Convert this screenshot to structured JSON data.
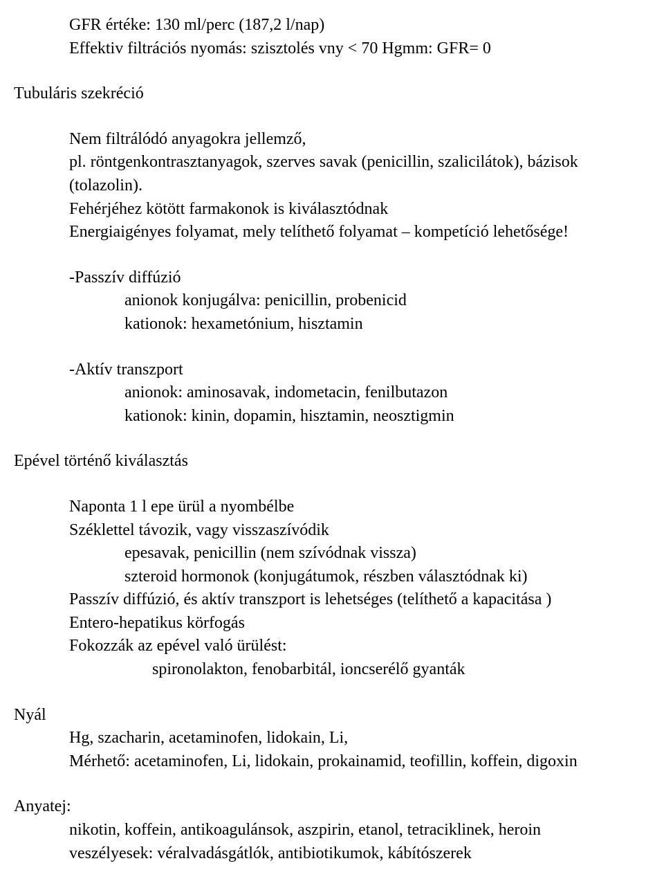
{
  "s1": {
    "l1": "GFR értéke: 130 ml/perc (187,2 l/nap)",
    "l2": "Effektiv filtrációs nyomás: szisztolés vny < 70 Hgmm: GFR= 0"
  },
  "s2": {
    "l1": "Tubuláris szekréció"
  },
  "s3": {
    "l1": "Nem filtrálódó anyagokra jellemző,",
    "l2": "pl. röntgenkontrasztanyagok, szerves savak (penicillin, szalicilátok), bázisok (tolazolin).",
    "l3": "Fehérjéhez kötött farmakonok is kiválasztódnak",
    "l4": "Energiaigényes folyamat, mely telíthető folyamat – kompetíció lehetősége!"
  },
  "s4": {
    "l1": "-Passzív diffúzió",
    "l2": "anionok konjugálva: penicillin, probenicid",
    "l3": "kationok: hexametónium, hisztamin"
  },
  "s5": {
    "l1": "-Aktív transzport",
    "l2": "anionok: aminosavak, indometacin, fenilbutazon",
    "l3": "kationok: kinin, dopamin, hisztamin, neosztigmin"
  },
  "s6": {
    "l1": "Epével történő kiválasztás"
  },
  "s7": {
    "l1": "Naponta 1 l epe ürül a nyombélbe",
    "l2": "Széklettel távozik, vagy visszaszívódik",
    "l3": "epesavak, penicillin (nem szívódnak vissza)",
    "l4": "szteroid hormonok (konjugátumok, részben választódnak ki)",
    "l5": "Passzív diffúzió, és aktív transzport is lehetséges (telíthető a kapacitása )",
    "l6": "Entero-hepatikus körfogás",
    "l7": "Fokozzák az epével való ürülést:",
    "l8": " spironolakton, fenobarbitál,  ioncserélő gyanták"
  },
  "s8": {
    "l1": "Nyál",
    "l2": "Hg, szacharin, acetaminofen, lidokain, Li,",
    "l3": "Mérhető: acetaminofen, Li, lidokain, prokainamid, teofillin, koffein, digoxin"
  },
  "s9": {
    "l1": "Anyatej:",
    "l2": "nikotin, koffein, antikoagulánsok, aszpirin, etanol, tetraciklinek, heroin",
    "l3": "veszélyesek: véralvadásgátlók, antibiotikumok, kábítószerek"
  }
}
